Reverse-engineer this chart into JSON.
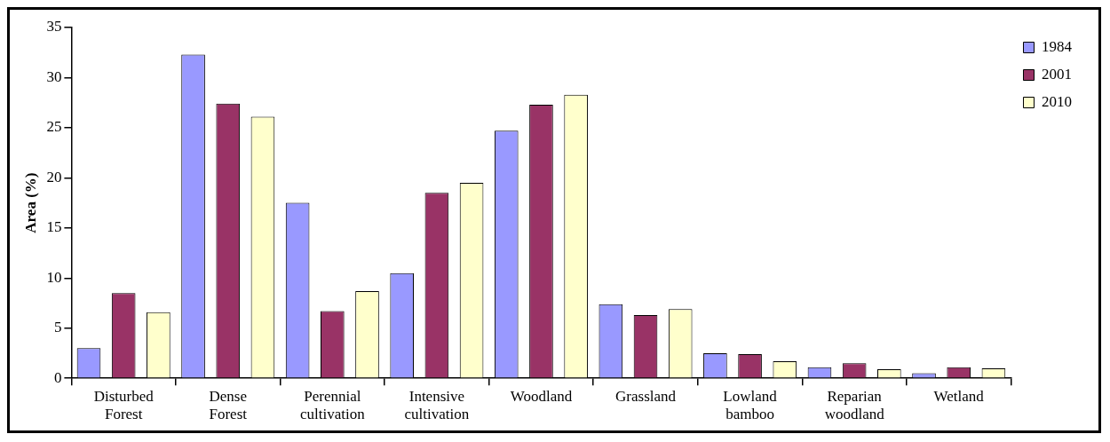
{
  "chart_data": {
    "type": "bar",
    "ylabel": "Area (%)",
    "categories": [
      "Disturbed Forest",
      "Dense Forest",
      "Perennial cultivation",
      "Intensive cultivation",
      "Woodland",
      "Grassland",
      "Lowland bamboo",
      "Reparian woodland",
      "Wetland"
    ],
    "series": [
      {
        "name": "1984",
        "color": "#9999ff",
        "values": [
          3.0,
          32.3,
          17.5,
          10.5,
          24.7,
          7.4,
          2.5,
          1.1,
          0.5
        ]
      },
      {
        "name": "2001",
        "color": "#993366",
        "values": [
          8.5,
          27.4,
          6.7,
          18.5,
          27.3,
          6.3,
          2.4,
          1.5,
          1.1
        ]
      },
      {
        "name": "2010",
        "color": "#ffffcc",
        "values": [
          6.6,
          26.1,
          8.7,
          19.5,
          28.3,
          6.9,
          1.7,
          0.9,
          1.0
        ]
      }
    ],
    "ylim": [
      0,
      35
    ],
    "yticks": [
      0,
      5,
      10,
      15,
      20,
      25,
      30,
      35
    ],
    "grid": false,
    "legend": "top right"
  }
}
